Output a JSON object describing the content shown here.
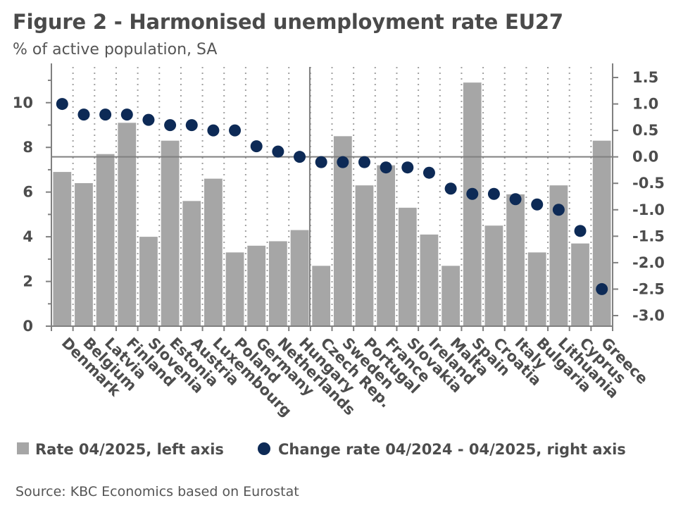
{
  "header": {
    "title": "Figure 2 - Harmonised unemployment rate EU27",
    "subtitle": "% of active population, SA"
  },
  "footer": {
    "source": "Source: KBC Economics based on Eurostat"
  },
  "colors": {
    "bar": "#a6a6a6",
    "dot": "#0d2a56",
    "axis": "#808080",
    "grid": "#a0a0a0",
    "text": "#4d4d4d"
  },
  "chart_data": {
    "type": "bar",
    "categories": [
      "Denmark",
      "Belgium",
      "Latvia",
      "Finland",
      "Slovenia",
      "Estonia",
      "Austria",
      "Luxembourg",
      "Poland",
      "Germany",
      "Netherlands",
      "Hungary",
      "Czech Rep.",
      "Sweden",
      "Portugal",
      "France",
      "Slovakia",
      "Ireland",
      "Malta",
      "Spain",
      "Croatia",
      "Italy",
      "Bulgaria",
      "Lithuania",
      "Cyprus",
      "Greece"
    ],
    "series": [
      {
        "name": "Rate 04/2025, left axis",
        "type": "bar",
        "axis": "left",
        "values": [
          6.9,
          6.4,
          7.7,
          9.1,
          4.0,
          8.3,
          5.6,
          6.6,
          3.3,
          3.6,
          3.8,
          4.3,
          2.7,
          8.5,
          6.3,
          7.2,
          5.3,
          4.1,
          2.7,
          10.9,
          4.5,
          5.9,
          3.3,
          6.3,
          3.7,
          8.3
        ]
      },
      {
        "name": "Change rate 04/2024 - 04/2025, right axis",
        "type": "scatter",
        "axis": "right",
        "values": [
          1.0,
          0.8,
          0.8,
          0.8,
          0.7,
          0.6,
          0.6,
          0.5,
          0.5,
          0.2,
          0.1,
          0.0,
          -0.1,
          -0.1,
          -0.1,
          -0.2,
          -0.2,
          -0.3,
          -0.6,
          -0.7,
          -0.7,
          -0.8,
          -0.9,
          -1.0,
          -1.4,
          -2.5
        ]
      }
    ],
    "y_left": {
      "min": 0,
      "max": 11.6,
      "ticks": [
        0,
        2,
        4,
        6,
        8,
        10
      ],
      "tick_labels": [
        "0",
        "2",
        "4",
        "6",
        "8",
        "10"
      ]
    },
    "y_right": {
      "min": -3.2,
      "max": 1.7,
      "ticks": [
        1.5,
        1.0,
        0.5,
        0.0,
        -0.5,
        -1.0,
        -1.5,
        -2.0,
        -2.5,
        -3.0
      ],
      "tick_labels": [
        "1.5",
        "1.0",
        "0.5",
        "0.0",
        "-0.5",
        "-1.0",
        "-1.5",
        "-2.0",
        "-2.5",
        "-3.0"
      ]
    },
    "grid": "vertical dotted",
    "legend": "bottom"
  }
}
